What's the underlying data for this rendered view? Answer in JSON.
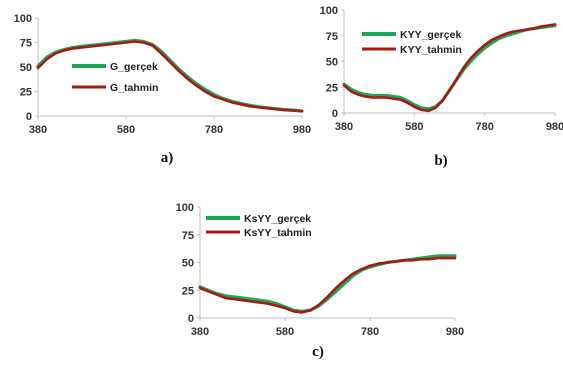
{
  "colors": {
    "green": "#1FA65A",
    "red": "#A51A13",
    "axis": "#BFBFBF"
  },
  "chart_data": [
    {
      "type": "line",
      "panel_label": "a)",
      "xlim": [
        380,
        980
      ],
      "ylim": [
        0,
        100
      ],
      "x_ticks": [
        380,
        580,
        780,
        980
      ],
      "y_ticks": [
        0,
        25,
        50,
        75,
        100
      ],
      "x": [
        380,
        400,
        420,
        440,
        460,
        480,
        500,
        520,
        540,
        560,
        580,
        600,
        620,
        640,
        660,
        680,
        700,
        720,
        740,
        760,
        780,
        800,
        820,
        840,
        860,
        880,
        900,
        920,
        940,
        960,
        980
      ],
      "series": [
        {
          "name": "G_gerçek",
          "values": [
            51,
            60,
            65,
            68,
            70,
            71,
            72,
            73,
            74,
            75,
            76,
            77,
            76,
            73,
            66,
            57,
            48,
            40,
            33,
            27,
            22,
            18,
            15,
            13,
            11,
            9.5,
            8.5,
            7.5,
            6.5,
            6,
            5
          ]
        },
        {
          "name": "G_tahmin",
          "values": [
            49,
            58,
            64,
            67,
            69,
            70,
            71,
            72,
            73,
            74,
            75,
            76,
            75,
            72,
            64,
            55,
            46,
            38,
            31,
            25,
            20,
            17,
            14,
            12,
            10,
            9,
            8,
            7,
            6,
            5.5,
            5
          ]
        }
      ]
    },
    {
      "type": "line",
      "panel_label": "b)",
      "xlim": [
        380,
        980
      ],
      "ylim": [
        0,
        100
      ],
      "x_ticks": [
        380,
        580,
        780,
        980
      ],
      "y_ticks": [
        0,
        25,
        50,
        75,
        100
      ],
      "x": [
        380,
        400,
        420,
        440,
        460,
        480,
        500,
        520,
        540,
        560,
        580,
        600,
        620,
        640,
        660,
        680,
        700,
        720,
        740,
        760,
        780,
        800,
        820,
        840,
        860,
        880,
        900,
        920,
        940,
        960,
        980
      ],
      "series": [
        {
          "name": "KYY_gerçek",
          "values": [
            28,
            23,
            20,
            18,
            17,
            17,
            17,
            16,
            15,
            12,
            8,
            5,
            4,
            6,
            12,
            22,
            32,
            42,
            50,
            57,
            63,
            68,
            72,
            75,
            77,
            79,
            81,
            82,
            83,
            84,
            85
          ]
        },
        {
          "name": "KYY_tahmin",
          "values": [
            27,
            21,
            18,
            16,
            15,
            15,
            15,
            14,
            13,
            10,
            6,
            3,
            2,
            5,
            12,
            22,
            33,
            44,
            53,
            60,
            66,
            71,
            74,
            77,
            79,
            80,
            81,
            82,
            84,
            85,
            86
          ]
        }
      ]
    },
    {
      "type": "line",
      "panel_label": "c)",
      "xlim": [
        380,
        980
      ],
      "ylim": [
        0,
        100
      ],
      "x_ticks": [
        380,
        580,
        780,
        980
      ],
      "y_ticks": [
        0,
        25,
        50,
        75,
        100
      ],
      "x": [
        380,
        400,
        420,
        440,
        460,
        480,
        500,
        520,
        540,
        560,
        580,
        600,
        620,
        640,
        660,
        680,
        700,
        720,
        740,
        760,
        780,
        800,
        820,
        840,
        860,
        880,
        900,
        920,
        940,
        960,
        980
      ],
      "series": [
        {
          "name": "KsYY_gerçek",
          "values": [
            28,
            25,
            22,
            20,
            19,
            18,
            17,
            16,
            15,
            13,
            10,
            7,
            6,
            7,
            11,
            17,
            24,
            31,
            38,
            43,
            46,
            48,
            50,
            51,
            52,
            53,
            54,
            55,
            56,
            56,
            56
          ]
        },
        {
          "name": "KsYY_tahmin",
          "values": [
            27,
            24,
            21,
            18,
            17,
            16,
            15,
            14,
            13,
            11,
            9,
            6,
            5,
            7,
            12,
            19,
            27,
            34,
            40,
            44,
            47,
            49,
            50,
            51,
            52,
            52,
            53,
            53,
            54,
            54,
            54
          ]
        }
      ]
    }
  ]
}
